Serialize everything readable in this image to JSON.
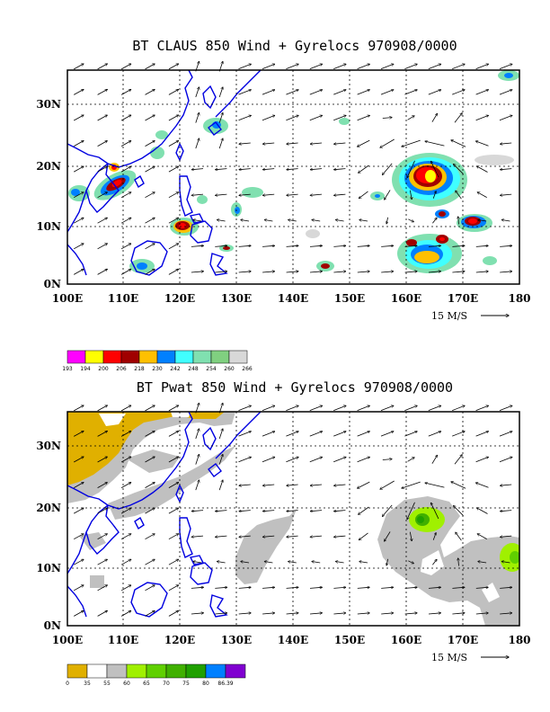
{
  "panels": [
    {
      "title": "BT CLAUS 850 Wind + Gyrelocs 970908/0000",
      "xticks": [
        "100E",
        "110E",
        "120E",
        "130E",
        "140E",
        "150E",
        "160E",
        "170E",
        "180"
      ],
      "yticks": [
        "0N",
        "10N",
        "20N",
        "30N"
      ],
      "ref_vector": "15 M/S",
      "colorbar": {
        "colors": [
          "#ff00ff",
          "#ffff00",
          "#ff0000",
          "#a00000",
          "#ffc000",
          "#0080ff",
          "#40ffff",
          "#80e0b0",
          "#80d080",
          "#d8d8d8"
        ],
        "labels": [
          "193",
          "194",
          "200",
          "206",
          "218",
          "230",
          "242",
          "248",
          "254",
          "260",
          "266"
        ]
      }
    },
    {
      "title": "BT Pwat 850 Wind + Gyrelocs 970908/0000",
      "xticks": [
        "100E",
        "110E",
        "120E",
        "130E",
        "140E",
        "150E",
        "160E",
        "170E",
        "180"
      ],
      "yticks": [
        "0N",
        "10N",
        "20N",
        "30N"
      ],
      "ref_vector": "15 M/S",
      "colorbar": {
        "colors": [
          "#e0b000",
          "#ffffff",
          "#c0c0c0",
          "#a0f000",
          "#60d000",
          "#40b000",
          "#20a000",
          "#0080ff",
          "#8000d0"
        ],
        "labels": [
          "0",
          "35",
          "55",
          "60",
          "65",
          "70",
          "75",
          "80",
          "86.39"
        ]
      }
    }
  ],
  "colors": {
    "coast": "#0000e0",
    "grid": "#000000"
  }
}
